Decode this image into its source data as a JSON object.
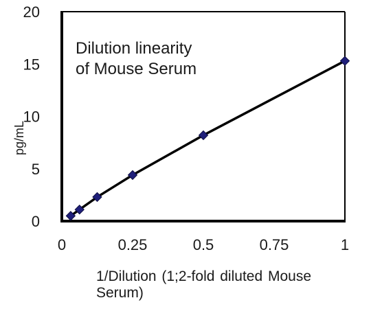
{
  "chart_data": {
    "type": "scatter",
    "title": "Dilution linearity of Mouse Serum",
    "title_lines": [
      "Dilution linearity",
      "of Mouse Serum"
    ],
    "xlabel": "1/Dilution (1;2-fold diluted Mouse Serum)",
    "ylabel": "pg/mL",
    "xlim": [
      0,
      1
    ],
    "ylim": [
      0,
      20
    ],
    "x_ticks": [
      0,
      0.25,
      0.5,
      0.75,
      1
    ],
    "x_tick_labels": [
      "0",
      "0.25",
      "0.5",
      "0.75",
      "1"
    ],
    "y_ticks": [
      0,
      5,
      10,
      15,
      20
    ],
    "y_tick_labels": [
      "0",
      "5",
      "10",
      "15",
      "20"
    ],
    "grid": false,
    "legend": "none",
    "series": [
      {
        "x": [
          0.03125,
          0.0625,
          0.125,
          0.25,
          0.5,
          1
        ],
        "y": [
          0.5,
          1.1,
          2.3,
          4.4,
          8.2,
          15.3
        ],
        "marker": "diamond",
        "marker_color": "#1f1f7a",
        "line_color": "#000000"
      }
    ]
  }
}
